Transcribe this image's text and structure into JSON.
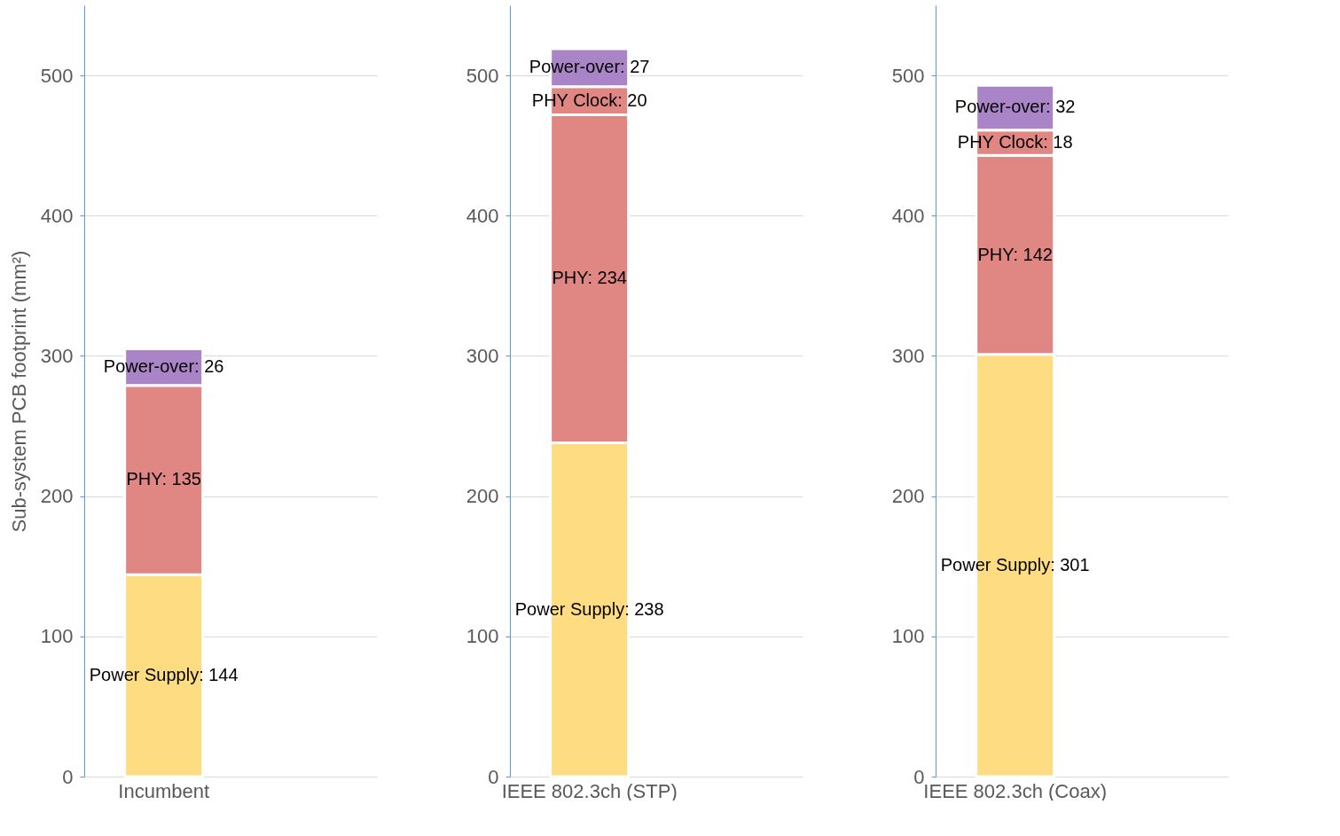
{
  "chart_data": [
    {
      "type": "bar",
      "stacked": true,
      "ylabel": "Sub-system PCB footprint (mm²)",
      "categories": [
        "Incumbent"
      ],
      "ylim": [
        0,
        550
      ],
      "yticks": [
        0,
        100,
        200,
        300,
        400,
        500
      ],
      "grid": "y",
      "series": [
        {
          "color": "#fddc82",
          "values": [
            144
          ],
          "value_labels": [
            "Power Supply: 144"
          ]
        },
        {
          "color": "#e08683",
          "values": [
            135
          ],
          "value_labels": [
            "PHY: 135"
          ]
        },
        {
          "color": "#a984c6",
          "values": [
            26
          ],
          "value_labels": [
            "Power-over: 26"
          ]
        }
      ]
    },
    {
      "type": "bar",
      "stacked": true,
      "categories": [
        "IEEE 802.3ch (STP)"
      ],
      "ylim": [
        0,
        550
      ],
      "yticks": [
        0,
        100,
        200,
        300,
        400,
        500
      ],
      "grid": "y",
      "series": [
        {
          "color": "#fddc82",
          "values": [
            238
          ],
          "value_labels": [
            "Power Supply: 238"
          ]
        },
        {
          "color": "#e08683",
          "values": [
            234
          ],
          "value_labels": [
            "PHY: 234"
          ]
        },
        {
          "color": "#e08683",
          "values": [
            20
          ],
          "value_labels": [
            "PHY Clock: 20"
          ]
        },
        {
          "color": "#a984c6",
          "values": [
            27
          ],
          "value_labels": [
            "Power-over: 27"
          ]
        }
      ]
    },
    {
      "type": "bar",
      "stacked": true,
      "categories": [
        "IEEE 802.3ch (Coax)"
      ],
      "ylim": [
        0,
        550
      ],
      "yticks": [
        0,
        100,
        200,
        300,
        400,
        500
      ],
      "grid": "y",
      "series": [
        {
          "color": "#fddc82",
          "values": [
            301
          ],
          "value_labels": [
            "Power Supply: 301"
          ]
        },
        {
          "color": "#e08683",
          "values": [
            142
          ],
          "value_labels": [
            "PHY: 142"
          ]
        },
        {
          "color": "#e08683",
          "values": [
            18
          ],
          "value_labels": [
            "PHY Clock: 18"
          ]
        },
        {
          "color": "#a984c6",
          "values": [
            32
          ],
          "value_labels": [
            "Power-over: 32"
          ]
        }
      ]
    }
  ]
}
